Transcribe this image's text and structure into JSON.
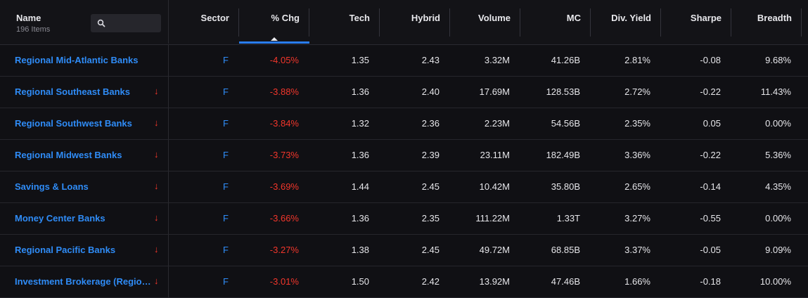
{
  "header": {
    "name_title": "Name",
    "items_count": "196 Items",
    "search_placeholder": "",
    "columns": [
      "Sector",
      "% Chg",
      "Tech",
      "Hybrid",
      "Volume",
      "MC",
      "Div. Yield",
      "Sharpe",
      "Breadth"
    ]
  },
  "colors": {
    "accent": "#2f8cf7",
    "negative": "#f2362b",
    "sort_indicator": "#2a7df5"
  },
  "sorted_column": "% Chg",
  "rows": [
    {
      "name": "Regional Mid-Atlantic Banks",
      "arrow": "",
      "sector": "F",
      "chg": "-4.05%",
      "tech": "1.35",
      "hybrid": "2.43",
      "volume": "3.32M",
      "mc": "41.26B",
      "div": "2.81%",
      "sharpe": "-0.08",
      "breadth": "9.68%"
    },
    {
      "name": "Regional Southeast Banks",
      "arrow": "↓",
      "sector": "F",
      "chg": "-3.88%",
      "tech": "1.36",
      "hybrid": "2.40",
      "volume": "17.69M",
      "mc": "128.53B",
      "div": "2.72%",
      "sharpe": "-0.22",
      "breadth": "11.43%"
    },
    {
      "name": "Regional Southwest Banks",
      "arrow": "↓",
      "sector": "F",
      "chg": "-3.84%",
      "tech": "1.32",
      "hybrid": "2.36",
      "volume": "2.23M",
      "mc": "54.56B",
      "div": "2.35%",
      "sharpe": "0.05",
      "breadth": "0.00%"
    },
    {
      "name": "Regional Midwest Banks",
      "arrow": "↓",
      "sector": "F",
      "chg": "-3.73%",
      "tech": "1.36",
      "hybrid": "2.39",
      "volume": "23.11M",
      "mc": "182.49B",
      "div": "3.36%",
      "sharpe": "-0.22",
      "breadth": "5.36%"
    },
    {
      "name": "Savings & Loans",
      "arrow": "↓",
      "sector": "F",
      "chg": "-3.69%",
      "tech": "1.44",
      "hybrid": "2.45",
      "volume": "10.42M",
      "mc": "35.80B",
      "div": "2.65%",
      "sharpe": "-0.14",
      "breadth": "4.35%"
    },
    {
      "name": "Money Center Banks",
      "arrow": "↓",
      "sector": "F",
      "chg": "-3.66%",
      "tech": "1.36",
      "hybrid": "2.35",
      "volume": "111.22M",
      "mc": "1.33T",
      "div": "3.27%",
      "sharpe": "-0.55",
      "breadth": "0.00%"
    },
    {
      "name": "Regional Pacific Banks",
      "arrow": "↓",
      "sector": "F",
      "chg": "-3.27%",
      "tech": "1.38",
      "hybrid": "2.45",
      "volume": "49.72M",
      "mc": "68.85B",
      "div": "3.37%",
      "sharpe": "-0.05",
      "breadth": "9.09%"
    },
    {
      "name": "Investment Brokerage (Regional)",
      "arrow": "↓",
      "sector": "F",
      "chg": "-3.01%",
      "tech": "1.50",
      "hybrid": "2.42",
      "volume": "13.92M",
      "mc": "47.46B",
      "div": "1.66%",
      "sharpe": "-0.18",
      "breadth": "10.00%"
    }
  ]
}
